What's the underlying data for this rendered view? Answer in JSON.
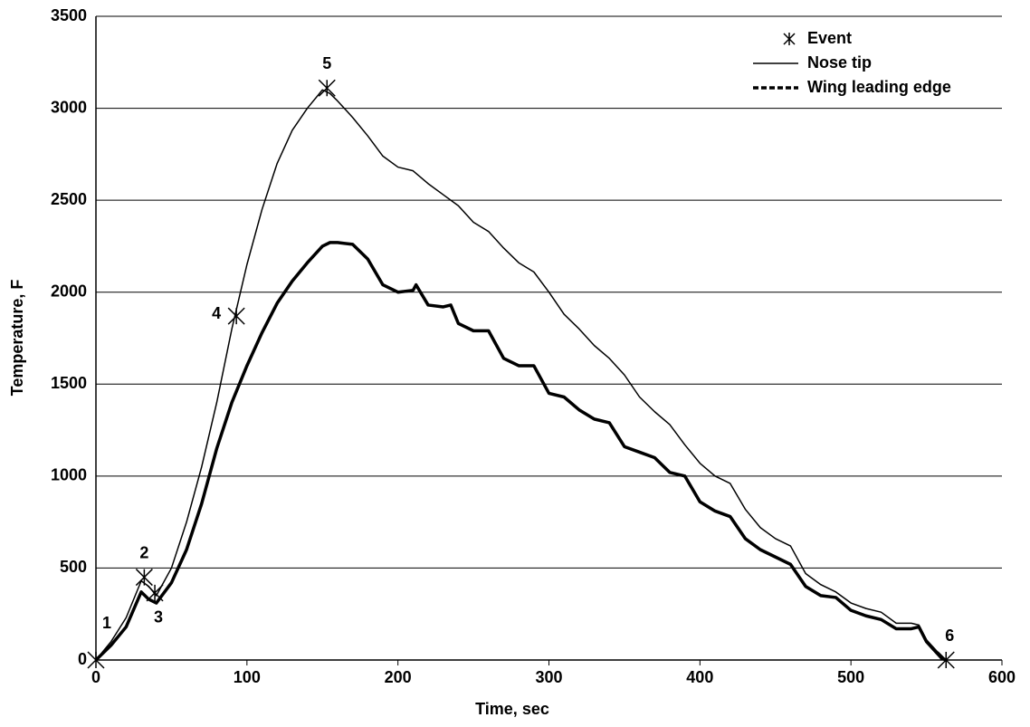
{
  "chart_data": {
    "type": "line",
    "xlabel": "Time, sec",
    "ylabel": "Temperature, F",
    "xlim": [
      0,
      600
    ],
    "xticks": [
      0,
      100,
      200,
      300,
      400,
      500,
      600
    ],
    "ylim": [
      0,
      3500
    ],
    "yticks": [
      0,
      500,
      1000,
      1500,
      2000,
      2500,
      3000,
      3500
    ],
    "grid": true,
    "legend": "upper right",
    "series": [
      {
        "name": "Event",
        "type": "scatter",
        "color": "#000000",
        "x": [
          0,
          32,
          39,
          93,
          153,
          563
        ],
        "values": [
          0,
          450,
          365,
          1870,
          3110,
          0
        ],
        "labels": [
          "1",
          "2",
          "3",
          "4",
          "5",
          "6"
        ]
      },
      {
        "name": "Nose tip",
        "type": "line",
        "color": "#000000",
        "x": [
          0,
          10,
          20,
          30,
          35,
          40,
          50,
          60,
          70,
          80,
          90,
          100,
          110,
          120,
          130,
          140,
          150,
          155,
          160,
          170,
          180,
          190,
          200,
          210,
          220,
          230,
          240,
          250,
          260,
          270,
          280,
          290,
          300,
          310,
          320,
          330,
          340,
          350,
          360,
          370,
          380,
          390,
          400,
          410,
          420,
          430,
          440,
          450,
          460,
          470,
          480,
          490,
          500,
          510,
          520,
          530,
          540,
          545,
          550,
          560,
          563
        ],
        "values": [
          0,
          100,
          230,
          430,
          400,
          350,
          500,
          750,
          1050,
          1400,
          1800,
          2150,
          2450,
          2700,
          2880,
          3000,
          3100,
          3080,
          3040,
          2950,
          2850,
          2740,
          2680,
          2660,
          2590,
          2530,
          2470,
          2380,
          2330,
          2240,
          2160,
          2110,
          2000,
          1880,
          1800,
          1710,
          1640,
          1550,
          1430,
          1350,
          1280,
          1170,
          1070,
          1000,
          960,
          820,
          720,
          660,
          620,
          470,
          410,
          370,
          310,
          280,
          260,
          200,
          200,
          190,
          110,
          20,
          0
        ]
      },
      {
        "name": "Wing leading edge",
        "type": "line",
        "color": "#000000",
        "x": [
          0,
          10,
          20,
          30,
          35,
          40,
          50,
          60,
          70,
          80,
          90,
          100,
          110,
          120,
          130,
          140,
          150,
          155,
          160,
          170,
          180,
          190,
          200,
          210,
          212,
          220,
          230,
          235,
          240,
          250,
          260,
          270,
          280,
          290,
          300,
          310,
          320,
          330,
          340,
          350,
          360,
          370,
          380,
          390,
          400,
          410,
          420,
          430,
          440,
          450,
          460,
          470,
          480,
          490,
          500,
          510,
          520,
          530,
          540,
          545,
          550,
          560,
          563
        ],
        "values": [
          0,
          80,
          180,
          370,
          330,
          310,
          420,
          600,
          850,
          1150,
          1400,
          1600,
          1780,
          1940,
          2060,
          2160,
          2250,
          2270,
          2270,
          2260,
          2180,
          2040,
          2000,
          2010,
          2040,
          1930,
          1920,
          1930,
          1830,
          1790,
          1790,
          1640,
          1600,
          1600,
          1450,
          1430,
          1360,
          1310,
          1290,
          1160,
          1130,
          1100,
          1020,
          1000,
          860,
          810,
          780,
          660,
          600,
          560,
          520,
          400,
          350,
          340,
          270,
          240,
          220,
          170,
          170,
          180,
          100,
          10,
          0
        ]
      }
    ]
  }
}
